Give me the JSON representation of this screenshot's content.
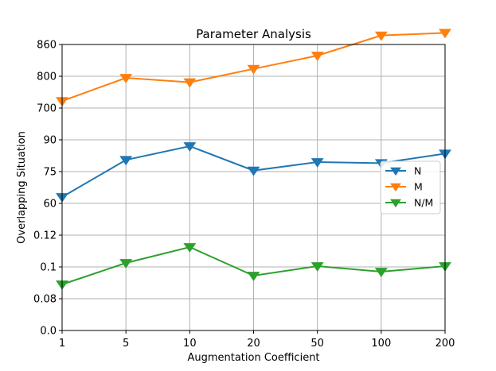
{
  "chart_data": {
    "type": "line",
    "title": "Parameter Analysis",
    "xlabel": "Augmentation Coefficient",
    "ylabel": "Overlapping Situation",
    "categories": [
      "1",
      "5",
      "10",
      "20",
      "50",
      "100",
      "200"
    ],
    "y_tick_labels": [
      "0.0",
      "0.08",
      "0.1",
      "0.12",
      "60",
      "75",
      "90",
      "700",
      "800",
      "860"
    ],
    "grid": true,
    "legend_position": "center-right",
    "series": [
      {
        "name": "N",
        "color": "#1f77b4",
        "marker": "triangle-down",
        "values": [
          63,
          80.5,
          87,
          75.5,
          79.5,
          79,
          83.5
        ],
        "segment_range": [
          60,
          90
        ],
        "segment_ticks": [
          60,
          75,
          90
        ]
      },
      {
        "name": "M",
        "color": "#ff7f0e",
        "marker": "triangle-down",
        "values": [
          722,
          795,
          781,
          814,
          839,
          877,
          882
        ],
        "segment_range": [
          700,
          860
        ],
        "segment_ticks": [
          700,
          800,
          860
        ]
      },
      {
        "name": "N/M",
        "color": "#2ca02c",
        "marker": "triangle-down",
        "values": [
          0.089,
          0.1025,
          0.1125,
          0.0945,
          0.1005,
          0.097,
          0.1005
        ],
        "segment_range": [
          0.08,
          0.12
        ],
        "segment_ticks": [
          0.08,
          0.1,
          0.12
        ]
      }
    ]
  }
}
